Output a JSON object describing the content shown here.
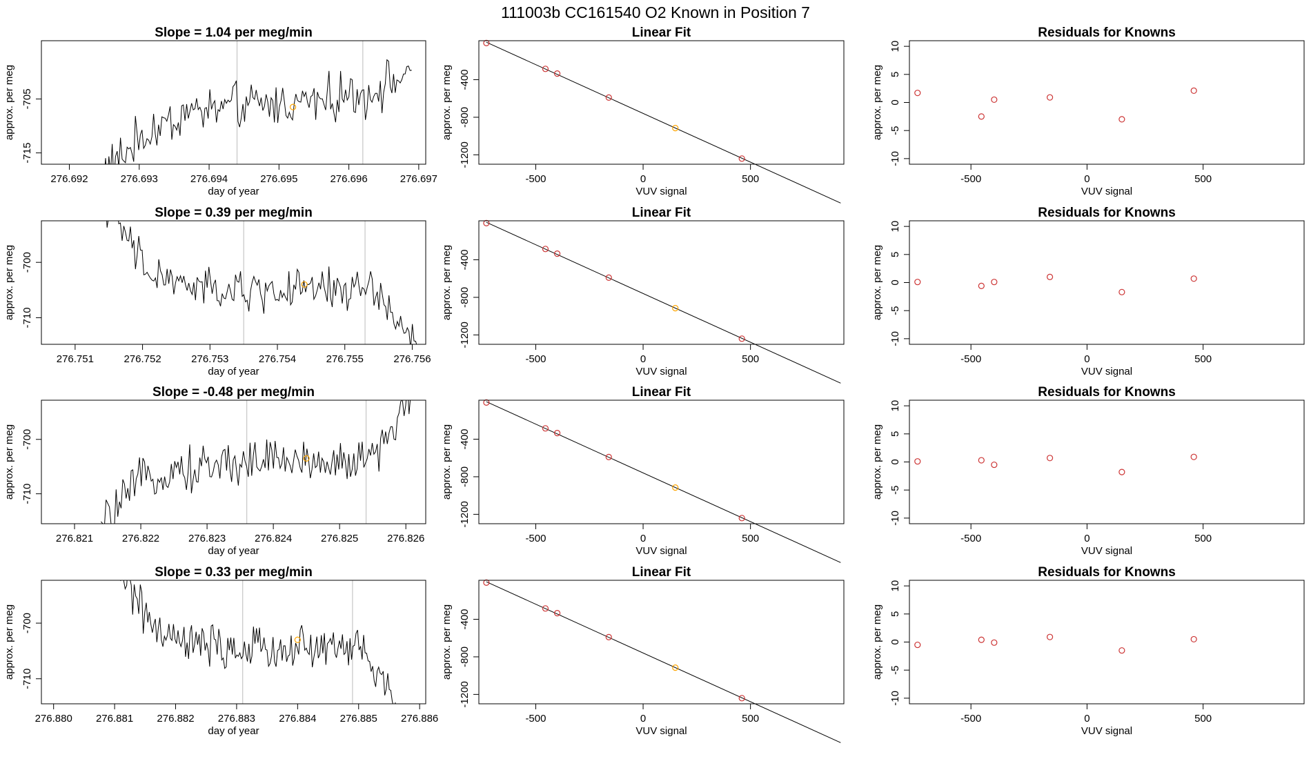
{
  "suptitle": "111003b      CC161540    O2 Known in Position  7",
  "series_axis": {
    "xlabel": "day of year",
    "ylabel": "approx. per meg"
  },
  "fit_axis": {
    "xlabel": "VUV signal",
    "ylabel": "approx. per meg",
    "title": "Linear Fit",
    "xlim": [
      -765,
      935
    ],
    "ylim": [
      -1300,
      15
    ],
    "xticks": [
      "-500",
      "0",
      "500"
    ],
    "yticks": [
      "-400",
      "-800",
      "-1200"
    ]
  },
  "resid_axis": {
    "xlabel": "VUV signal",
    "ylabel": "approx. per meg",
    "title": "Residuals for Knowns",
    "xlim": [
      -765,
      935
    ],
    "ylim": [
      -11,
      11
    ],
    "xticks": [
      "-500",
      "0",
      "500"
    ],
    "yticks": [
      "10",
      "5",
      "0",
      "-5",
      "-10"
    ]
  },
  "colors": {
    "line": "#000000",
    "points": "#cc3333",
    "highlight": "#ffa500",
    "vline": "#bbbbbb",
    "axis": "#000000"
  },
  "chart_data": [
    {
      "row": 1,
      "type": "line",
      "title": "Slope =  1.04  per meg/min",
      "xlabel": "day of year",
      "ylabel": "approx. per meg",
      "xlim": [
        276.6916,
        276.6971
      ],
      "ylim": [
        -717.1,
        -694.2
      ],
      "xticks": [
        "276.692",
        "276.693",
        "276.694",
        "276.695",
        "276.696",
        "276.697"
      ],
      "yticks": [
        "-705",
        "-715"
      ],
      "vlines": [
        276.6944,
        276.6962
      ],
      "highlight": {
        "x": 276.6952,
        "y": -706.5
      },
      "series_start": 276.6924,
      "series_end": 276.6969,
      "series_trend": [
        -720,
        -712,
        -707.5,
        -706.5,
        -706.0,
        -705.0,
        -704.0,
        -700
      ],
      "noise_amplitude": 2.6,
      "fit": {
        "type": "scatter",
        "title": "Linear Fit",
        "x": [
          -730,
          -455,
          -400,
          -160,
          150,
          460
        ],
        "y": [
          -10,
          -285,
          -335,
          -590,
          -915,
          -1240
        ]
      },
      "residuals": {
        "type": "scatter",
        "title": "Residuals for Knowns",
        "x": [
          -730,
          -455,
          -400,
          -160,
          150,
          460
        ],
        "y": [
          1.7,
          -2.5,
          0.5,
          0.9,
          -3.0,
          2.1
        ]
      }
    },
    {
      "row": 2,
      "type": "line",
      "title": "Slope =  0.39  per meg/min",
      "xlabel": "day of year",
      "ylabel": "approx. per meg",
      "xlim": [
        276.7505,
        276.7562
      ],
      "ylim": [
        -714.8,
        -692.5
      ],
      "xticks": [
        "276.751",
        "276.752",
        "276.753",
        "276.754",
        "276.755",
        "276.756"
      ],
      "yticks": [
        "-700",
        "-710"
      ],
      "vlines": [
        276.7535,
        276.7553
      ],
      "highlight": {
        "x": 276.7544,
        "y": -704.0
      },
      "series_start": 276.7514,
      "series_end": 276.7561,
      "series_trend": [
        -688,
        -702,
        -704.5,
        -705.5,
        -705.0,
        -705.0,
        -704.5,
        -716
      ],
      "noise_amplitude": 2.3,
      "fit": {
        "type": "scatter",
        "title": "Linear Fit",
        "x": [
          -730,
          -455,
          -400,
          -160,
          150,
          460
        ],
        "y": [
          -10,
          -285,
          -335,
          -590,
          -915,
          -1240
        ]
      },
      "residuals": {
        "type": "scatter",
        "title": "Residuals for Knowns",
        "x": [
          -730,
          -455,
          -400,
          -160,
          150,
          460
        ],
        "y": [
          0.1,
          -0.6,
          0.1,
          1.0,
          -1.7,
          0.7
        ]
      }
    },
    {
      "row": 3,
      "type": "line",
      "title": "Slope =  -0.48  per meg/min",
      "xlabel": "day of year",
      "ylabel": "approx. per meg",
      "xlim": [
        276.8205,
        276.8263
      ],
      "ylim": [
        -715.5,
        -692.8
      ],
      "xticks": [
        "276.821",
        "276.822",
        "276.823",
        "276.824",
        "276.825",
        "276.826"
      ],
      "yticks": [
        "-700",
        "-710"
      ],
      "vlines": [
        276.8236,
        276.8254
      ],
      "highlight": {
        "x": 276.8245,
        "y": -703.5
      },
      "series_start": 276.8214,
      "series_end": 276.8262,
      "series_trend": [
        -716,
        -706.5,
        -705.5,
        -704.0,
        -703.5,
        -704.5,
        -703.5,
        -690
      ],
      "noise_amplitude": 2.5,
      "fit": {
        "type": "scatter",
        "title": "Linear Fit",
        "x": [
          -730,
          -455,
          -400,
          -160,
          150,
          460
        ],
        "y": [
          -10,
          -285,
          -335,
          -590,
          -915,
          -1240
        ]
      },
      "residuals": {
        "type": "scatter",
        "title": "Residuals for Knowns",
        "x": [
          -730,
          -455,
          -400,
          -160,
          150,
          460
        ],
        "y": [
          0.1,
          0.3,
          -0.5,
          0.7,
          -1.8,
          0.9
        ]
      }
    },
    {
      "row": 4,
      "type": "line",
      "title": "Slope =  0.33  per meg/min",
      "xlabel": "day of year",
      "ylabel": "approx. per meg",
      "xlim": [
        276.8798,
        276.8861
      ],
      "ylim": [
        -714.5,
        -692.3
      ],
      "xticks": [
        "276.880",
        "276.881",
        "276.882",
        "276.883",
        "276.884",
        "276.885",
        "276.886"
      ],
      "yticks": [
        "-700",
        "-710"
      ],
      "vlines": [
        276.8831,
        276.8849
      ],
      "highlight": {
        "x": 276.884,
        "y": -703.0
      },
      "series_start": 276.881,
      "series_end": 276.8857,
      "series_trend": [
        -688,
        -702,
        -704.0,
        -705.0,
        -704.5,
        -704.5,
        -704.0,
        -716
      ],
      "noise_amplitude": 2.3,
      "fit": {
        "type": "scatter",
        "title": "Linear Fit",
        "x": [
          -730,
          -455,
          -400,
          -160,
          150,
          460
        ],
        "y": [
          -10,
          -285,
          -335,
          -590,
          -915,
          -1240
        ]
      },
      "residuals": {
        "type": "scatter",
        "title": "Residuals for Knowns",
        "x": [
          -730,
          -455,
          -400,
          -160,
          150,
          460
        ],
        "y": [
          -0.5,
          0.4,
          -0.1,
          0.9,
          -1.5,
          0.5
        ]
      }
    }
  ]
}
